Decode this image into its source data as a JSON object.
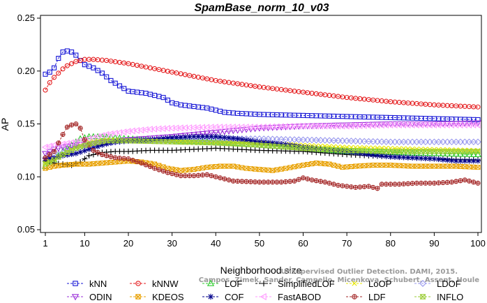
{
  "chart_data": {
    "type": "line",
    "title": "SpamBase_norm_10_v03",
    "xlabel": "Neighborhood size",
    "ylabel": "AP",
    "xlim": [
      1,
      100
    ],
    "ylim": [
      0.05,
      0.25
    ],
    "x_ticks": [
      "1",
      "10",
      "20",
      "30",
      "40",
      "50",
      "60",
      "70",
      "80",
      "90",
      "100"
    ],
    "y_ticks": [
      "0.05",
      "0.10",
      "0.15",
      "0.20",
      "0.25"
    ],
    "grid": false,
    "legend_position": "bottom",
    "credit": [
      "Unsupervised Outlier Detection. DAMI, 2015.",
      "Campos, Zimek, Sander, Campello, Micenkova, Schubert, Assent, Houle"
    ],
    "series": [
      {
        "name": "kNN",
        "color": "#1515d6",
        "marker": "square",
        "points": [
          [
            1,
            0.197
          ],
          [
            2,
            0.199
          ],
          [
            3,
            0.203
          ],
          [
            4,
            0.212
          ],
          [
            5,
            0.218
          ],
          [
            6,
            0.219
          ],
          [
            7,
            0.218
          ],
          [
            8,
            0.215
          ],
          [
            9,
            0.21
          ],
          [
            10,
            0.206
          ],
          [
            12,
            0.203
          ],
          [
            14,
            0.198
          ],
          [
            16,
            0.191
          ],
          [
            18,
            0.186
          ],
          [
            20,
            0.181
          ],
          [
            22,
            0.18
          ],
          [
            24,
            0.179
          ],
          [
            26,
            0.177
          ],
          [
            28,
            0.175
          ],
          [
            30,
            0.17
          ],
          [
            32,
            0.168
          ],
          [
            34,
            0.167
          ],
          [
            36,
            0.166
          ],
          [
            38,
            0.165
          ],
          [
            40,
            0.163
          ],
          [
            42,
            0.161
          ],
          [
            45,
            0.16
          ],
          [
            50,
            0.159
          ],
          [
            60,
            0.158
          ],
          [
            70,
            0.157
          ],
          [
            80,
            0.156
          ],
          [
            90,
            0.155
          ],
          [
            100,
            0.154
          ]
        ]
      },
      {
        "name": "kNNW",
        "color": "#e41a1c",
        "marker": "circle",
        "points": [
          [
            1,
            0.182
          ],
          [
            2,
            0.189
          ],
          [
            3,
            0.194
          ],
          [
            4,
            0.198
          ],
          [
            5,
            0.202
          ],
          [
            6,
            0.205
          ],
          [
            7,
            0.207
          ],
          [
            8,
            0.209
          ],
          [
            10,
            0.211
          ],
          [
            12,
            0.211
          ],
          [
            15,
            0.21
          ],
          [
            20,
            0.207
          ],
          [
            25,
            0.203
          ],
          [
            30,
            0.199
          ],
          [
            40,
            0.191
          ],
          [
            50,
            0.185
          ],
          [
            60,
            0.18
          ],
          [
            70,
            0.175
          ],
          [
            80,
            0.171
          ],
          [
            90,
            0.168
          ],
          [
            100,
            0.166
          ]
        ]
      },
      {
        "name": "LOF",
        "color": "#2ecc2e",
        "marker": "triangle",
        "points": [
          [
            1,
            0.11
          ],
          [
            3,
            0.116
          ],
          [
            5,
            0.124
          ],
          [
            7,
            0.13
          ],
          [
            9,
            0.136
          ],
          [
            11,
            0.138
          ],
          [
            14,
            0.138
          ],
          [
            17,
            0.137
          ],
          [
            20,
            0.136
          ],
          [
            25,
            0.135
          ],
          [
            30,
            0.134
          ],
          [
            40,
            0.133
          ],
          [
            50,
            0.13
          ],
          [
            60,
            0.127
          ],
          [
            70,
            0.124
          ],
          [
            80,
            0.123
          ],
          [
            90,
            0.122
          ],
          [
            100,
            0.121
          ]
        ]
      },
      {
        "name": "SimplifiedLOF",
        "color": "#000000",
        "marker": "plus",
        "points": [
          [
            1,
            0.115
          ],
          [
            3,
            0.113
          ],
          [
            5,
            0.112
          ],
          [
            7,
            0.111
          ],
          [
            9,
            0.114
          ],
          [
            11,
            0.12
          ],
          [
            14,
            0.123
          ],
          [
            17,
            0.124
          ],
          [
            20,
            0.124
          ],
          [
            25,
            0.125
          ],
          [
            30,
            0.125
          ],
          [
            40,
            0.127
          ],
          [
            50,
            0.125
          ],
          [
            60,
            0.124
          ],
          [
            70,
            0.121
          ],
          [
            80,
            0.119
          ],
          [
            90,
            0.117
          ],
          [
            100,
            0.116
          ]
        ]
      },
      {
        "name": "LoOP",
        "color": "#e8e800",
        "marker": "x",
        "points": [
          [
            1,
            0.113
          ],
          [
            3,
            0.117
          ],
          [
            5,
            0.122
          ],
          [
            8,
            0.128
          ],
          [
            11,
            0.133
          ],
          [
            15,
            0.135
          ],
          [
            20,
            0.135
          ],
          [
            30,
            0.134
          ],
          [
            40,
            0.133
          ],
          [
            50,
            0.132
          ],
          [
            60,
            0.13
          ],
          [
            70,
            0.128
          ],
          [
            80,
            0.127
          ],
          [
            90,
            0.126
          ],
          [
            100,
            0.125
          ]
        ]
      },
      {
        "name": "LDOF",
        "color": "#9999ee",
        "marker": "diamond",
        "points": [
          [
            1,
            0.118
          ],
          [
            3,
            0.12
          ],
          [
            5,
            0.123
          ],
          [
            8,
            0.127
          ],
          [
            11,
            0.13
          ],
          [
            15,
            0.132
          ],
          [
            20,
            0.134
          ],
          [
            30,
            0.135
          ],
          [
            40,
            0.136
          ],
          [
            50,
            0.136
          ],
          [
            60,
            0.135
          ],
          [
            70,
            0.134
          ],
          [
            80,
            0.133
          ],
          [
            90,
            0.133
          ],
          [
            100,
            0.133
          ]
        ]
      },
      {
        "name": "ODIN",
        "color": "#9b30d9",
        "marker": "triangle-down",
        "points": [
          [
            1,
            0.122
          ],
          [
            3,
            0.126
          ],
          [
            5,
            0.128
          ],
          [
            8,
            0.13
          ],
          [
            11,
            0.131
          ],
          [
            15,
            0.133
          ],
          [
            20,
            0.135
          ],
          [
            30,
            0.138
          ],
          [
            40,
            0.142
          ],
          [
            50,
            0.146
          ],
          [
            60,
            0.148
          ],
          [
            70,
            0.149
          ],
          [
            80,
            0.15
          ],
          [
            90,
            0.15
          ],
          [
            100,
            0.151
          ]
        ]
      },
      {
        "name": "KDEOS",
        "color": "#e8a000",
        "marker": "square-x",
        "points": [
          [
            1,
            0.108
          ],
          [
            3,
            0.11
          ],
          [
            5,
            0.111
          ],
          [
            8,
            0.112
          ],
          [
            11,
            0.112
          ],
          [
            14,
            0.113
          ],
          [
            17,
            0.114
          ],
          [
            20,
            0.115
          ],
          [
            23,
            0.114
          ],
          [
            26,
            0.112
          ],
          [
            29,
            0.108
          ],
          [
            32,
            0.106
          ],
          [
            35,
            0.107
          ],
          [
            38,
            0.109
          ],
          [
            41,
            0.11
          ],
          [
            44,
            0.11
          ],
          [
            47,
            0.108
          ],
          [
            50,
            0.107
          ],
          [
            53,
            0.106
          ],
          [
            56,
            0.108
          ],
          [
            60,
            0.111
          ],
          [
            63,
            0.113
          ],
          [
            66,
            0.112
          ],
          [
            69,
            0.109
          ],
          [
            72,
            0.11
          ],
          [
            76,
            0.111
          ],
          [
            80,
            0.111
          ],
          [
            85,
            0.11
          ],
          [
            90,
            0.11
          ],
          [
            95,
            0.11
          ],
          [
            100,
            0.109
          ]
        ]
      },
      {
        "name": "COF",
        "color": "#00008b",
        "marker": "star",
        "points": [
          [
            1,
            0.117
          ],
          [
            3,
            0.118
          ],
          [
            5,
            0.12
          ],
          [
            8,
            0.122
          ],
          [
            11,
            0.126
          ],
          [
            14,
            0.13
          ],
          [
            17,
            0.133
          ],
          [
            20,
            0.134
          ],
          [
            25,
            0.135
          ],
          [
            30,
            0.137
          ],
          [
            35,
            0.138
          ],
          [
            40,
            0.138
          ],
          [
            45,
            0.136
          ],
          [
            50,
            0.133
          ],
          [
            55,
            0.131
          ],
          [
            60,
            0.128
          ],
          [
            65,
            0.126
          ],
          [
            70,
            0.124
          ],
          [
            75,
            0.121
          ],
          [
            80,
            0.119
          ],
          [
            85,
            0.118
          ],
          [
            90,
            0.117
          ],
          [
            95,
            0.115
          ],
          [
            100,
            0.115
          ]
        ]
      },
      {
        "name": "FastABOD",
        "color": "#ff99ff",
        "marker": "triangle-left",
        "points": [
          [
            1,
            0.128
          ],
          [
            3,
            0.13
          ],
          [
            5,
            0.131
          ],
          [
            8,
            0.133
          ],
          [
            11,
            0.136
          ],
          [
            15,
            0.14
          ],
          [
            20,
            0.143
          ],
          [
            25,
            0.145
          ],
          [
            30,
            0.146
          ],
          [
            40,
            0.147
          ],
          [
            50,
            0.147
          ],
          [
            60,
            0.148
          ],
          [
            70,
            0.148
          ],
          [
            80,
            0.149
          ],
          [
            90,
            0.149
          ],
          [
            100,
            0.149
          ]
        ]
      },
      {
        "name": "LDF",
        "color": "#a52a2a",
        "marker": "circle-plus",
        "points": [
          [
            1,
            0.118
          ],
          [
            3,
            0.124
          ],
          [
            4,
            0.132
          ],
          [
            5,
            0.14
          ],
          [
            6,
            0.147
          ],
          [
            7,
            0.149
          ],
          [
            8,
            0.15
          ],
          [
            9,
            0.146
          ],
          [
            10,
            0.135
          ],
          [
            12,
            0.125
          ],
          [
            14,
            0.121
          ],
          [
            17,
            0.118
          ],
          [
            20,
            0.117
          ],
          [
            23,
            0.113
          ],
          [
            26,
            0.108
          ],
          [
            29,
            0.104
          ],
          [
            32,
            0.101
          ],
          [
            35,
            0.101
          ],
          [
            38,
            0.102
          ],
          [
            41,
            0.099
          ],
          [
            44,
            0.096
          ],
          [
            50,
            0.095
          ],
          [
            55,
            0.095
          ],
          [
            58,
            0.096
          ],
          [
            60,
            0.099
          ],
          [
            62,
            0.097
          ],
          [
            65,
            0.095
          ],
          [
            68,
            0.092
          ],
          [
            72,
            0.09
          ],
          [
            75,
            0.091
          ],
          [
            77,
            0.089
          ],
          [
            78,
            0.093
          ],
          [
            82,
            0.093
          ],
          [
            86,
            0.094
          ],
          [
            90,
            0.094
          ],
          [
            94,
            0.095
          ],
          [
            97,
            0.097
          ],
          [
            100,
            0.094
          ]
        ]
      },
      {
        "name": "INFLO",
        "color": "#99cc33",
        "marker": "hourglass",
        "points": [
          [
            1,
            0.112
          ],
          [
            3,
            0.116
          ],
          [
            5,
            0.121
          ],
          [
            8,
            0.127
          ],
          [
            11,
            0.131
          ],
          [
            15,
            0.134
          ],
          [
            20,
            0.134
          ],
          [
            30,
            0.133
          ],
          [
            40,
            0.132
          ],
          [
            50,
            0.13
          ],
          [
            60,
            0.127
          ],
          [
            70,
            0.125
          ],
          [
            80,
            0.124
          ],
          [
            90,
            0.124
          ],
          [
            100,
            0.124
          ]
        ]
      }
    ]
  }
}
